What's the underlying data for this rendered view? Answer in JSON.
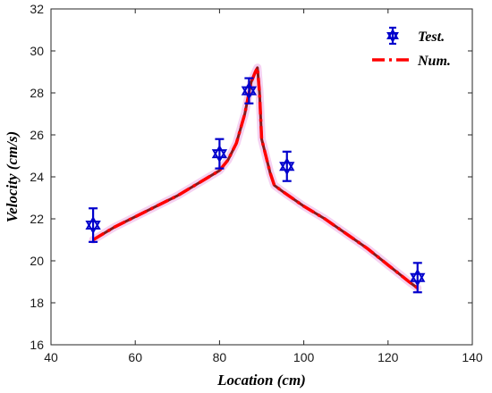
{
  "chart_data": {
    "type": "line",
    "xlabel": "Location (cm)",
    "ylabel": "Velocity (cm/s)",
    "xlim": [
      40,
      140
    ],
    "ylim": [
      16,
      32
    ],
    "xticks": [
      40,
      60,
      80,
      100,
      120,
      140
    ],
    "yticks": [
      16,
      18,
      20,
      22,
      24,
      26,
      28,
      30,
      32
    ],
    "grid": false,
    "legend_position": "top-right",
    "series": [
      {
        "name": "Test.",
        "kind": "errorbar",
        "color": "#0000cc",
        "marker": "hexagram",
        "points": [
          {
            "x": 50,
            "y": 21.7,
            "err": 0.8
          },
          {
            "x": 80,
            "y": 25.1,
            "err": 0.7
          },
          {
            "x": 87,
            "y": 28.1,
            "err": 0.6
          },
          {
            "x": 96,
            "y": 24.5,
            "err": 0.7
          },
          {
            "x": 127,
            "y": 19.2,
            "err": 0.7
          }
        ]
      },
      {
        "name": "Num.",
        "kind": "line",
        "color": "#ff0000",
        "dash": "dash-dot",
        "points": [
          {
            "x": 50,
            "y": 21.0
          },
          {
            "x": 55,
            "y": 21.6
          },
          {
            "x": 60,
            "y": 22.1
          },
          {
            "x": 65,
            "y": 22.6
          },
          {
            "x": 70,
            "y": 23.1
          },
          {
            "x": 75,
            "y": 23.7
          },
          {
            "x": 80,
            "y": 24.3
          },
          {
            "x": 82,
            "y": 24.8
          },
          {
            "x": 84,
            "y": 25.6
          },
          {
            "x": 86,
            "y": 27.0
          },
          {
            "x": 87.5,
            "y": 28.5
          },
          {
            "x": 88.5,
            "y": 29.0
          },
          {
            "x": 89,
            "y": 29.2
          },
          {
            "x": 89.5,
            "y": 28.0
          },
          {
            "x": 90,
            "y": 25.8
          },
          {
            "x": 91,
            "y": 25.0
          },
          {
            "x": 92,
            "y": 24.2
          },
          {
            "x": 93,
            "y": 23.6
          },
          {
            "x": 95,
            "y": 23.3
          },
          {
            "x": 100,
            "y": 22.6
          },
          {
            "x": 105,
            "y": 22.0
          },
          {
            "x": 110,
            "y": 21.3
          },
          {
            "x": 115,
            "y": 20.6
          },
          {
            "x": 120,
            "y": 19.8
          },
          {
            "x": 125,
            "y": 19.0
          },
          {
            "x": 127,
            "y": 18.7
          }
        ]
      }
    ]
  }
}
